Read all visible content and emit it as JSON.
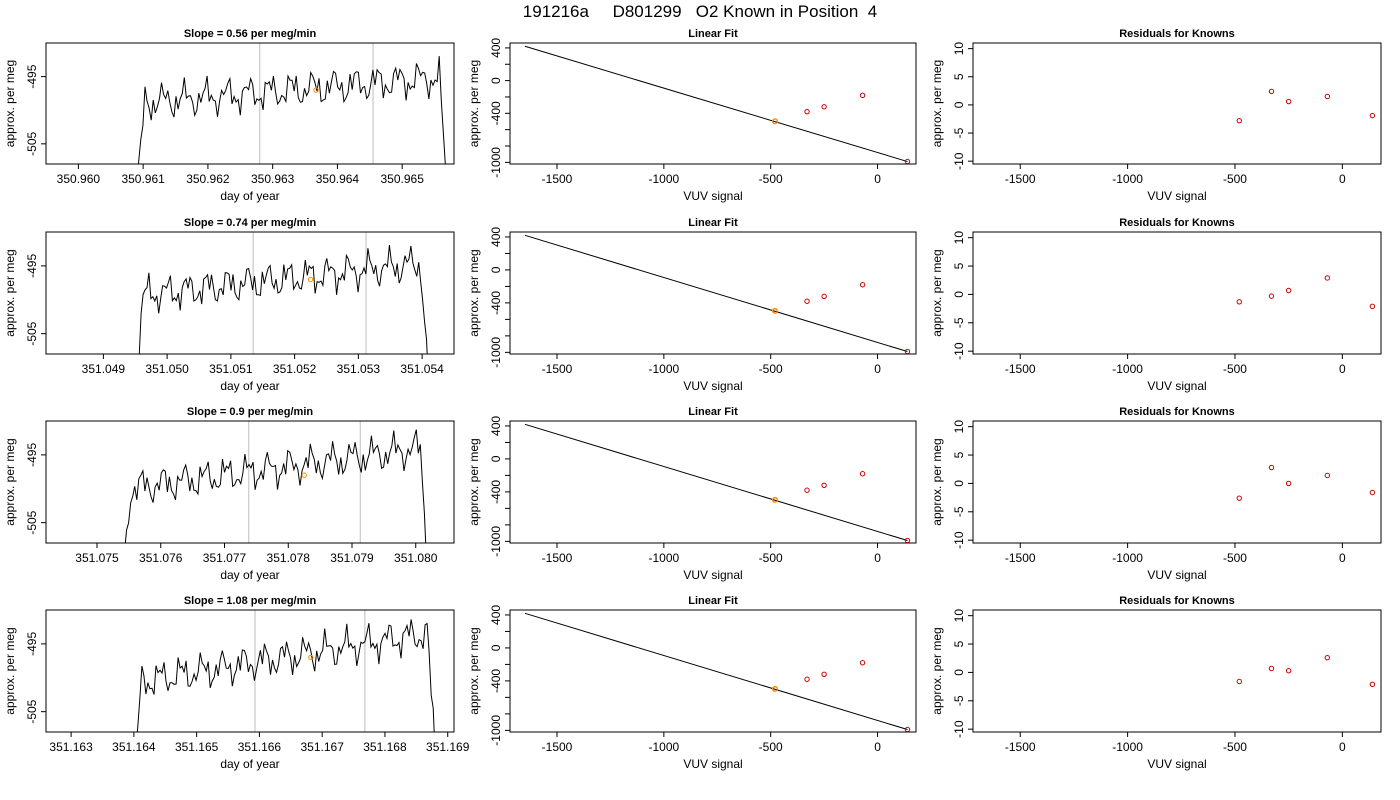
{
  "page_title": "191216a     D801299   O2 Known in Position  4",
  "colors": {
    "trace": "#000000",
    "highlight": "#ff8c00",
    "residual": "#cc0000",
    "vline": "#c8c8c8"
  },
  "chart_data": [
    {
      "type": "line",
      "row": 1,
      "title": "Slope =  0.56  per meg/min",
      "xlabel": "day of year",
      "ylabel": "approx. per meg",
      "xlim": [
        350.9595,
        350.9658
      ],
      "ylim": [
        -508,
        -490
      ],
      "xticks": [
        "350.960",
        "350.961",
        "350.962",
        "350.963",
        "350.964",
        "350.965"
      ],
      "xtick_values": [
        350.96,
        350.961,
        350.962,
        350.963,
        350.964,
        350.965
      ],
      "yticks": [
        "-505",
        "-495"
      ],
      "ytick_values": [
        -505,
        -495
      ],
      "window": [
        350.9628,
        350.96455
      ],
      "marker": {
        "x": 350.96367,
        "y": -497
      },
      "start": 350.9609,
      "end": 350.9657,
      "level": -497,
      "slope_per_day": 806
    },
    {
      "type": "scatter",
      "row": 1,
      "title": "Linear Fit",
      "xlabel": "VUV signal",
      "ylabel": "approx. per meg",
      "xlim": [
        -1720,
        180
      ],
      "ylim": [
        -1020,
        460
      ],
      "xticks": [
        "-1500",
        "-1000",
        "-500",
        "0"
      ],
      "xtick_values": [
        -1500,
        -1000,
        -500,
        0
      ],
      "yticks": [
        "-1000",
        "-800",
        "-600",
        "-400",
        "-200",
        "0",
        "200",
        "400"
      ],
      "ytick_values": [
        -1000,
        -800,
        -600,
        -400,
        -200,
        0,
        200,
        400
      ],
      "ytick_labels_shown": [
        "-1000",
        "-400",
        "0",
        "400"
      ],
      "line": {
        "x": [
          -1650,
          140
        ],
        "y": [
          420,
          -990
        ]
      },
      "x": [
        -480,
        -330,
        -250,
        -70,
        140
      ],
      "y": [
        -497,
        -380,
        -320,
        -180,
        -990
      ],
      "highlight": {
        "x": -480,
        "y": -497
      }
    },
    {
      "type": "scatter",
      "row": 1,
      "title": "Residuals for Knowns",
      "xlabel": "VUV signal",
      "ylabel": "approx. per meg",
      "xlim": [
        -1720,
        180
      ],
      "ylim": [
        -10.5,
        11
      ],
      "xticks": [
        "-1500",
        "-1000",
        "-500",
        "0"
      ],
      "xtick_values": [
        -1500,
        -1000,
        -500,
        0
      ],
      "yticks": [
        "-10",
        "-5",
        "0",
        "5",
        "10"
      ],
      "ytick_values": [
        -10,
        -5,
        0,
        5,
        10
      ],
      "x": [
        -480,
        -330,
        -250,
        -70,
        140
      ],
      "y": [
        -2.8,
        2.4,
        0.6,
        1.5,
        -1.9
      ]
    },
    {
      "type": "line",
      "row": 2,
      "title": "Slope =  0.74  per meg/min",
      "xlabel": "day of year",
      "ylabel": "approx. per meg",
      "xlim": [
        351.0481,
        351.0545
      ],
      "ylim": [
        -508,
        -490
      ],
      "xticks": [
        "351.049",
        "351.050",
        "351.051",
        "351.052",
        "351.053",
        "351.054"
      ],
      "xtick_values": [
        351.049,
        351.05,
        351.051,
        351.052,
        351.053,
        351.054
      ],
      "yticks": [
        "-505",
        "-495"
      ],
      "ytick_values": [
        -505,
        -495
      ],
      "window": [
        351.05135,
        351.05312
      ],
      "marker": {
        "x": 351.05225,
        "y": -497
      },
      "start": 351.0495,
      "end": 351.0541,
      "level": -497,
      "slope_per_day": 1066
    },
    {
      "type": "scatter",
      "row": 2,
      "title": "Linear Fit",
      "xlabel": "VUV signal",
      "ylabel": "approx. per meg",
      "xlim": [
        -1720,
        180
      ],
      "ylim": [
        -1020,
        460
      ],
      "xticks": [
        "-1500",
        "-1000",
        "-500",
        "0"
      ],
      "xtick_values": [
        -1500,
        -1000,
        -500,
        0
      ],
      "yticks": [
        "-1000",
        "-800",
        "-600",
        "-400",
        "-200",
        "0",
        "200",
        "400"
      ],
      "ytick_values": [
        -1000,
        -800,
        -600,
        -400,
        -200,
        0,
        200,
        400
      ],
      "ytick_labels_shown": [
        "-1000",
        "-400",
        "0",
        "400"
      ],
      "line": {
        "x": [
          -1650,
          140
        ],
        "y": [
          420,
          -990
        ]
      },
      "x": [
        -480,
        -330,
        -250,
        -70,
        140
      ],
      "y": [
        -497,
        -380,
        -320,
        -180,
        -990
      ],
      "highlight": {
        "x": -480,
        "y": -497
      }
    },
    {
      "type": "scatter",
      "row": 2,
      "title": "Residuals for Knowns",
      "xlabel": "VUV signal",
      "ylabel": "approx. per meg",
      "xlim": [
        -1720,
        180
      ],
      "ylim": [
        -10.5,
        11
      ],
      "xticks": [
        "-1500",
        "-1000",
        "-500",
        "0"
      ],
      "xtick_values": [
        -1500,
        -1000,
        -500,
        0
      ],
      "yticks": [
        "-10",
        "-5",
        "0",
        "5",
        "10"
      ],
      "ytick_values": [
        -10,
        -5,
        0,
        5,
        10
      ],
      "x": [
        -480,
        -330,
        -250,
        -70,
        140
      ],
      "y": [
        -1.3,
        -0.3,
        0.7,
        2.9,
        -2.1
      ]
    },
    {
      "type": "line",
      "row": 3,
      "title": "Slope =  0.9  per meg/min",
      "xlabel": "day of year",
      "ylabel": "approx. per meg",
      "xlim": [
        351.0742,
        351.0806
      ],
      "ylim": [
        -508,
        -490
      ],
      "xticks": [
        "351.075",
        "351.076",
        "351.077",
        "351.078",
        "351.079",
        "351.080"
      ],
      "xtick_values": [
        351.075,
        351.076,
        351.077,
        351.078,
        351.079,
        351.08
      ],
      "yticks": [
        "-505",
        "-495"
      ],
      "ytick_values": [
        -505,
        -495
      ],
      "window": [
        351.07738,
        351.07913
      ],
      "marker": {
        "x": 351.07825,
        "y": -498
      },
      "start": 351.0754,
      "end": 351.0802,
      "level": -497,
      "slope_per_day": 1296
    },
    {
      "type": "scatter",
      "row": 3,
      "title": "Linear Fit",
      "xlabel": "VUV signal",
      "ylabel": "approx. per meg",
      "xlim": [
        -1720,
        180
      ],
      "ylim": [
        -1020,
        460
      ],
      "xticks": [
        "-1500",
        "-1000",
        "-500",
        "0"
      ],
      "xtick_values": [
        -1500,
        -1000,
        -500,
        0
      ],
      "yticks": [
        "-1000",
        "-800",
        "-600",
        "-400",
        "-200",
        "0",
        "200",
        "400"
      ],
      "ytick_values": [
        -1000,
        -800,
        -600,
        -400,
        -200,
        0,
        200,
        400
      ],
      "ytick_labels_shown": [
        "-1000",
        "-400",
        "0",
        "400"
      ],
      "line": {
        "x": [
          -1650,
          140
        ],
        "y": [
          420,
          -990
        ]
      },
      "x": [
        -480,
        -330,
        -250,
        -70,
        140
      ],
      "y": [
        -497,
        -380,
        -320,
        -180,
        -990
      ],
      "highlight": {
        "x": -480,
        "y": -497
      }
    },
    {
      "type": "scatter",
      "row": 3,
      "title": "Residuals for Knowns",
      "xlabel": "VUV signal",
      "ylabel": "approx. per meg",
      "xlim": [
        -1720,
        180
      ],
      "ylim": [
        -10.5,
        11
      ],
      "xticks": [
        "-1500",
        "-1000",
        "-500",
        "0"
      ],
      "xtick_values": [
        -1500,
        -1000,
        -500,
        0
      ],
      "yticks": [
        "-10",
        "-5",
        "0",
        "5",
        "10"
      ],
      "ytick_values": [
        -10,
        -5,
        0,
        5,
        10
      ],
      "x": [
        -480,
        -330,
        -250,
        -70,
        140
      ],
      "y": [
        -2.6,
        2.8,
        0.0,
        1.4,
        -1.6
      ]
    },
    {
      "type": "line",
      "row": 4,
      "title": "Slope =  1.08  per meg/min",
      "xlabel": "day of year",
      "ylabel": "approx. per meg",
      "xlim": [
        351.1626,
        351.1691
      ],
      "ylim": [
        -508,
        -490
      ],
      "xticks": [
        "351.163",
        "351.164",
        "351.165",
        "351.166",
        "351.167",
        "351.168",
        "351.169"
      ],
      "xtick_values": [
        351.163,
        351.164,
        351.165,
        351.166,
        351.167,
        351.168,
        351.169
      ],
      "yticks": [
        "-505",
        "-495"
      ],
      "ytick_values": [
        -505,
        -495
      ],
      "window": [
        351.16593,
        351.16768
      ],
      "marker": {
        "x": 351.16682,
        "y": -497
      },
      "start": 351.164,
      "end": 351.1688,
      "level": -497,
      "slope_per_day": 1555
    },
    {
      "type": "scatter",
      "row": 4,
      "title": "Linear Fit",
      "xlabel": "VUV signal",
      "ylabel": "approx. per meg",
      "xlim": [
        -1720,
        180
      ],
      "ylim": [
        -1020,
        460
      ],
      "xticks": [
        "-1500",
        "-1000",
        "-500",
        "0"
      ],
      "xtick_values": [
        -1500,
        -1000,
        -500,
        0
      ],
      "yticks": [
        "-1000",
        "-800",
        "-600",
        "-400",
        "-200",
        "0",
        "200",
        "400"
      ],
      "ytick_values": [
        -1000,
        -800,
        -600,
        -400,
        -200,
        0,
        200,
        400
      ],
      "ytick_labels_shown": [
        "-1000",
        "-400",
        "0",
        "400"
      ],
      "line": {
        "x": [
          -1650,
          140
        ],
        "y": [
          420,
          -990
        ]
      },
      "x": [
        -480,
        -330,
        -250,
        -70,
        140
      ],
      "y": [
        -497,
        -380,
        -320,
        -180,
        -990
      ],
      "highlight": {
        "x": -480,
        "y": -497
      }
    },
    {
      "type": "scatter",
      "row": 4,
      "title": "Residuals for Knowns",
      "xlabel": "VUV signal",
      "ylabel": "approx. per meg",
      "xlim": [
        -1720,
        180
      ],
      "ylim": [
        -10.5,
        11
      ],
      "xticks": [
        "-1500",
        "-1000",
        "-500",
        "0"
      ],
      "xtick_values": [
        -1500,
        -1000,
        -500,
        0
      ],
      "yticks": [
        "-10",
        "-5",
        "0",
        "5",
        "10"
      ],
      "ytick_values": [
        -10,
        -5,
        0,
        5,
        10
      ],
      "x": [
        -480,
        -330,
        -250,
        -70,
        140
      ],
      "y": [
        -1.6,
        0.7,
        0.3,
        2.6,
        -2.1
      ]
    }
  ]
}
